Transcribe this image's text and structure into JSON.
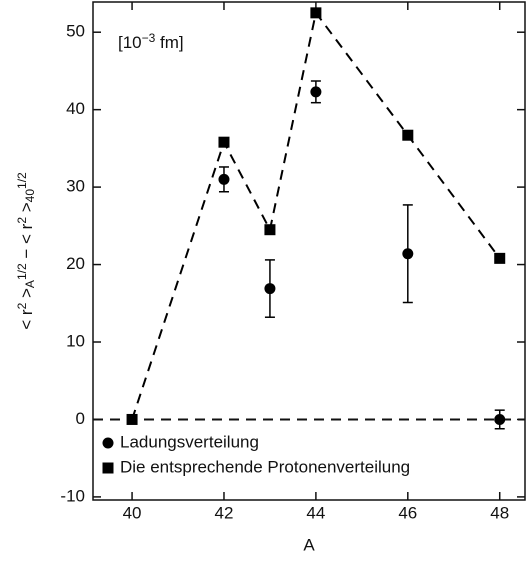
{
  "chart_data": {
    "type": "scatter",
    "xlabel": "A",
    "ylabel": [
      {
        "text": "< r"
      },
      {
        "text": "2",
        "pos": "sup"
      },
      {
        "text": " >"
      },
      {
        "text": "A",
        "pos": "sub"
      },
      {
        "text": "1/2",
        "pos": "sup"
      },
      {
        "text": " − < r"
      },
      {
        "text": "2",
        "pos": "sup"
      },
      {
        "text": " >"
      },
      {
        "text": "40",
        "pos": "sub"
      },
      {
        "text": "1/2",
        "pos": "sup"
      }
    ],
    "annotation": [
      {
        "text": "[10"
      },
      {
        "text": "−3",
        "pos": "sup"
      },
      {
        "text": " fm]"
      }
    ],
    "x": [
      40,
      42,
      43,
      44,
      46,
      48
    ],
    "series": [
      {
        "name": "Ladungsverteilung",
        "marker": "circle",
        "color": "#000000",
        "line": false,
        "values": [
          null,
          31,
          16.9,
          42.3,
          21.4,
          0
        ],
        "errors": [
          null,
          1.6,
          3.7,
          1.4,
          6.3,
          1.2
        ]
      },
      {
        "name": "Die entsprechende Protonenverteilung",
        "marker": "square",
        "color": "#000000",
        "line": "dashed",
        "values": [
          0,
          35.8,
          24.5,
          52.5,
          36.7,
          20.8
        ]
      }
    ],
    "hline": 0,
    "xlim": [
      39.15,
      48.55
    ],
    "xticks": [
      40,
      42,
      44,
      46,
      48
    ],
    "ylim": [
      -10.4,
      53.9
    ],
    "yticks": [
      -10,
      0,
      10,
      20,
      30,
      40,
      50
    ],
    "legend": "lower left"
  }
}
